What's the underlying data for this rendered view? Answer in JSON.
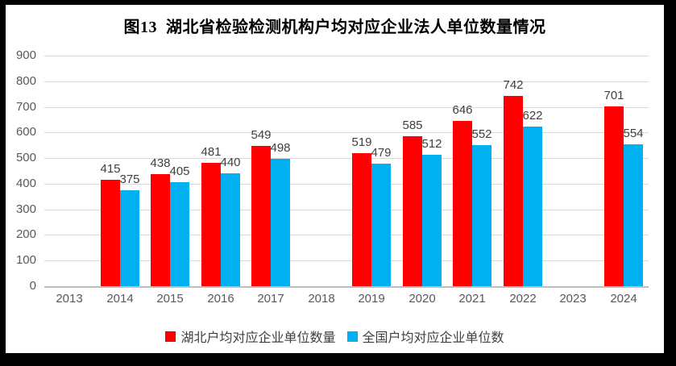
{
  "chart_data": {
    "type": "bar",
    "title": "图13  湖北省检验检测机构户均对应企业法人单位数量情况",
    "categories": [
      "2013",
      "2014",
      "2015",
      "2016",
      "2017",
      "2018",
      "2019",
      "2020",
      "2021",
      "2022",
      "2023",
      "2024"
    ],
    "series": [
      {
        "name": "湖北户均对应企业单位数量",
        "color": "#FF0000",
        "values": [
          null,
          415,
          438,
          481,
          549,
          null,
          519,
          585,
          646,
          742,
          null,
          701
        ]
      },
      {
        "name": "全国户均对应企业单位数",
        "color": "#00B0F0",
        "values": [
          null,
          375,
          405,
          440,
          498,
          null,
          479,
          512,
          552,
          622,
          null,
          554
        ]
      }
    ],
    "xlabel": "",
    "ylabel": "",
    "ylim": [
      0,
      900
    ],
    "ytick_step": 100,
    "yticks": [
      0,
      100,
      200,
      300,
      400,
      500,
      600,
      700,
      800,
      900
    ],
    "grid": true,
    "data_labels": true,
    "legend_position": "bottom"
  },
  "styles": {
    "frame_border_color": "#000000",
    "background": "#FFFFFF",
    "title_color": "#000000",
    "axis_label_color": "#595959",
    "data_label_color": "#404040",
    "gridline_color": "#D9D9D9",
    "baseline_color": "#BFBFBF"
  }
}
